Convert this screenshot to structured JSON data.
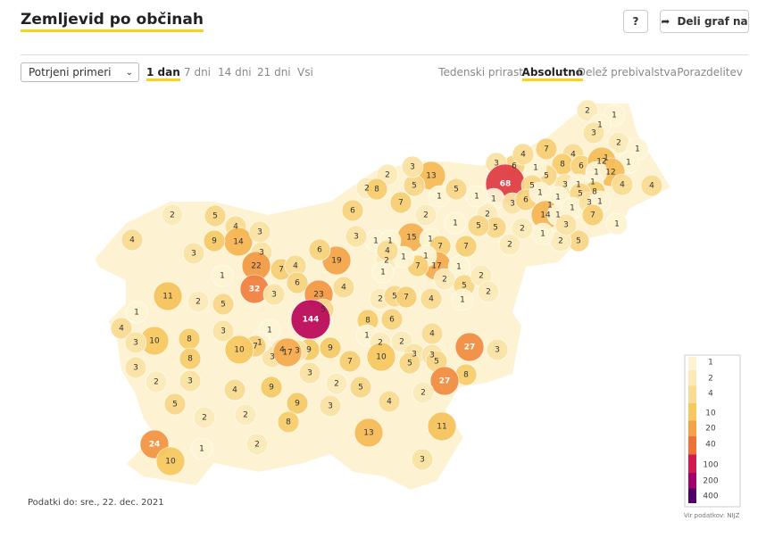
{
  "header": {
    "title": "Zemljevid po občinah",
    "help": "?",
    "share": "Deli graf na"
  },
  "controls": {
    "dropdown": "Potrjeni primeri",
    "periods": [
      "1 dan",
      "7 dni",
      "14 dni",
      "21 dni",
      "Vsi"
    ],
    "active_period": 0,
    "views": [
      "Tedenski prirast",
      "Absolutno",
      "Delež prebivalstva",
      "Porazdelitev"
    ],
    "active_view": 1
  },
  "map": {
    "values": [
      2,
      1,
      1,
      3,
      2,
      1,
      1,
      1,
      7,
      4,
      8,
      6,
      12,
      12,
      1,
      4,
      4,
      1,
      3,
      1,
      8,
      5,
      1,
      5,
      6,
      1,
      3,
      4,
      68,
      5,
      1,
      3,
      6,
      1,
      1,
      14,
      1,
      1,
      3,
      1,
      1,
      7,
      5,
      2,
      1,
      3,
      13,
      2,
      2,
      8,
      7,
      5,
      1,
      5,
      2,
      5,
      2,
      1,
      5,
      1,
      2,
      15,
      1,
      7,
      17,
      7,
      1,
      1,
      7,
      2,
      5,
      2,
      2,
      2,
      3,
      1,
      1,
      19,
      6,
      2,
      1,
      3,
      1,
      4,
      6,
      7,
      3,
      4,
      22,
      4,
      14,
      9,
      5,
      3,
      32,
      3,
      6,
      23,
      4,
      5,
      144,
      1,
      8,
      2,
      5,
      7,
      4,
      1,
      1,
      6,
      2,
      2,
      4,
      3,
      5,
      3,
      5,
      10,
      7,
      9,
      9,
      3,
      3,
      4,
      3,
      1,
      7,
      10,
      5,
      2,
      3,
      1,
      2,
      4,
      3,
      11,
      1,
      4,
      10,
      8,
      3,
      3,
      8,
      2,
      3,
      4,
      9,
      17,
      27,
      3,
      8,
      27,
      2,
      4,
      2,
      5,
      3,
      9,
      13,
      11,
      3,
      2,
      2,
      8,
      2,
      1,
      5,
      24,
      10
    ],
    "legend": {
      "ticks": [
        1,
        2,
        4,
        10,
        20,
        40,
        100,
        200,
        400
      ],
      "colors": [
        "#fdf3d3",
        "#fbe9b8",
        "#f9db94",
        "#f6c862",
        "#f3a249",
        "#ee713b",
        "#d4194e",
        "#a3006b",
        "#4d0066"
      ]
    }
  },
  "footer": {
    "date": "Podatki do: sre., 22. dec. 2021",
    "source": "Vir podatkov: NIJZ"
  }
}
